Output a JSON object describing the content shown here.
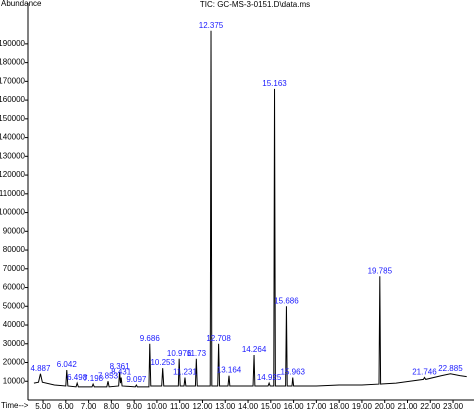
{
  "chart_data": {
    "type": "line",
    "title": "TIC: GC-MS-3-0151.D\\data.ms",
    "ylabel": "Abundance",
    "xlabel": "Time-->",
    "xlim": [
      4.34,
      23.92
    ],
    "ylim": [
      0,
      211800
    ],
    "xticks": [
      {
        "value": 5,
        "label": "5.00"
      },
      {
        "value": 6,
        "label": "6.00"
      },
      {
        "value": 7,
        "label": "7.00"
      },
      {
        "value": 8,
        "label": "8.00"
      },
      {
        "value": 9,
        "label": "9.00"
      },
      {
        "value": 10,
        "label": "10.00"
      },
      {
        "value": 11,
        "label": "11.00"
      },
      {
        "value": 12,
        "label": "12.00"
      },
      {
        "value": 13,
        "label": "13.00"
      },
      {
        "value": 14,
        "label": "14.00"
      },
      {
        "value": 15,
        "label": "15.00"
      },
      {
        "value": 16,
        "label": "16.00"
      },
      {
        "value": 17,
        "label": "17.00"
      },
      {
        "value": 18,
        "label": "18.00"
      },
      {
        "value": 19,
        "label": "19.00"
      },
      {
        "value": 20,
        "label": "20.00"
      },
      {
        "value": 21,
        "label": "21.00"
      },
      {
        "value": 22,
        "label": "22.00"
      },
      {
        "value": 23,
        "label": "23.00"
      }
    ],
    "yticks": [
      10000,
      20000,
      30000,
      40000,
      50000,
      60000,
      70000,
      80000,
      90000,
      100000,
      110000,
      120000,
      130000,
      140000,
      150000,
      160000,
      170000,
      180000,
      190000
    ],
    "series": [
      {
        "color": "#000000",
        "x": [
          4.6,
          4.8,
          4.887,
          4.97,
          5.5,
          6.0,
          6.042,
          6.09,
          6.45,
          6.498,
          6.55,
          7.15,
          7.198,
          7.25,
          7.8,
          7.853,
          7.9,
          8.32,
          8.361,
          8.4,
          8.431,
          8.47,
          9.05,
          9.097,
          9.14,
          9.65,
          9.686,
          9.73,
          10.21,
          10.253,
          10.3,
          10.94,
          10.976,
          11.02,
          11.19,
          11.231,
          11.27,
          11.69,
          11.73,
          11.77,
          12.34,
          12.375,
          12.41,
          12.67,
          12.708,
          12.75,
          13.12,
          13.164,
          13.2,
          14.22,
          14.264,
          14.3,
          14.88,
          14.925,
          14.97,
          15.13,
          15.163,
          15.2,
          15.65,
          15.686,
          15.72,
          15.93,
          15.963,
          16.0,
          17.0,
          18.0,
          19.0,
          19.75,
          19.785,
          19.82,
          20.5,
          21.7,
          21.746,
          21.8,
          22.5,
          22.885,
          23.3,
          23.6
        ],
        "values": [
          9000,
          9500,
          14000,
          9500,
          8000,
          7500,
          16000,
          7500,
          7000,
          9000,
          7000,
          7000,
          8500,
          7000,
          7000,
          10000,
          7000,
          7500,
          15000,
          9000,
          12000,
          7500,
          7000,
          8000,
          7000,
          7000,
          30000,
          7500,
          7500,
          17000,
          7500,
          7500,
          22000,
          7500,
          7500,
          12000,
          7500,
          7500,
          22000,
          7500,
          7500,
          197000,
          7500,
          7500,
          30000,
          7500,
          7500,
          13000,
          7500,
          7500,
          24000,
          7500,
          7500,
          9000,
          7500,
          7500,
          166000,
          7500,
          7500,
          50000,
          7500,
          7500,
          12000,
          7500,
          7500,
          8000,
          8000,
          8500,
          66000,
          8500,
          9000,
          11000,
          12000,
          11000,
          13000,
          14000,
          13000,
          12500
        ]
      }
    ],
    "annotations": [
      4.887,
      6.042,
      6.498,
      7.198,
      7.853,
      8.361,
      8.431,
      9.097,
      9.686,
      10.253,
      10.976,
      11.231,
      11.73,
      12.375,
      12.708,
      13.164,
      14.264,
      14.925,
      15.163,
      15.686,
      15.963,
      19.785,
      21.746,
      22.885
    ],
    "annotation_color": "#1a1aff"
  }
}
